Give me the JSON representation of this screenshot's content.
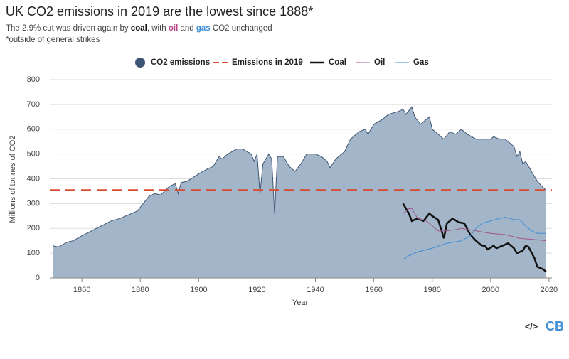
{
  "chart_data": {
    "type": "area",
    "title": "UK CO2 emissions in 2019 are the lowest since 1888*",
    "subtitle": [
      "The 2.9% cut was driven again by ",
      "coal",
      ", with ",
      "oil",
      " and ",
      "gas",
      " CO2 unchanged"
    ],
    "note": "*outside of general strikes",
    "y_label": "Millions of tonnes of CO2",
    "x_label": "Year",
    "logos": [
      "</>",
      "CB"
    ],
    "xlim": [
      1849,
      2021
    ],
    "xticks": [
      1860,
      1880,
      1900,
      1920,
      1940,
      1960,
      1980,
      2000,
      2020
    ],
    "ylim": [
      0,
      800
    ],
    "yticks": [
      0,
      100,
      200,
      300,
      400,
      500,
      600,
      700,
      800
    ],
    "grid": true,
    "legend": "top",
    "series": [
      {
        "name": "CO2 emissions",
        "type": "area",
        "color": "#a3b5c8",
        "stroke": "#3d5575",
        "x": [
          1850,
          1852,
          1855,
          1857,
          1860,
          1865,
          1870,
          1873,
          1875,
          1879,
          1880,
          1883,
          1885,
          1887,
          1890,
          1892,
          1893,
          1894,
          1896,
          1900,
          1903,
          1905,
          1907,
          1908,
          1910,
          1913,
          1915,
          1918,
          1919,
          1920,
          1921,
          1922,
          1924,
          1925,
          1926,
          1927,
          1929,
          1931,
          1933,
          1935,
          1937,
          1940,
          1942,
          1944,
          1945,
          1947,
          1950,
          1952,
          1955,
          1957,
          1958,
          1960,
          1963,
          1965,
          1968,
          1970,
          1971,
          1973,
          1974,
          1976,
          1979,
          1980,
          1982,
          1984,
          1986,
          1988,
          1990,
          1992,
          1995,
          1998,
          2000,
          2001,
          2003,
          2005,
          2008,
          2009,
          2010,
          2011,
          2012,
          2014,
          2016,
          2018,
          2019
        ],
        "values": [
          130,
          125,
          145,
          150,
          170,
          200,
          230,
          240,
          250,
          270,
          285,
          330,
          340,
          335,
          370,
          380,
          340,
          385,
          390,
          420,
          440,
          450,
          490,
          480,
          500,
          520,
          520,
          500,
          470,
          500,
          340,
          460,
          500,
          480,
          260,
          490,
          490,
          450,
          430,
          460,
          500,
          500,
          490,
          470,
          445,
          480,
          510,
          560,
          590,
          600,
          580,
          620,
          640,
          660,
          670,
          680,
          660,
          690,
          650,
          620,
          650,
          600,
          580,
          560,
          590,
          580,
          600,
          580,
          560,
          560,
          560,
          570,
          560,
          560,
          530,
          490,
          510,
          460,
          470,
          430,
          390,
          365,
          355
        ]
      },
      {
        "name": "Emissions in 2019",
        "type": "hline",
        "color": "#d94a30",
        "dashed": true,
        "values": [
          355
        ]
      },
      {
        "name": "Coal",
        "type": "line",
        "color": "#111111",
        "width": 2.5,
        "x": [
          1970,
          1972,
          1973,
          1975,
          1977,
          1979,
          1980,
          1982,
          1984,
          1985,
          1987,
          1989,
          1991,
          1993,
          1995,
          1997,
          1998,
          1999,
          2001,
          2002,
          2004,
          2006,
          2008,
          2009,
          2011,
          2012,
          2013,
          2015,
          2016,
          2018,
          2019
        ],
        "values": [
          300,
          260,
          230,
          240,
          230,
          260,
          250,
          235,
          160,
          220,
          240,
          225,
          220,
          175,
          150,
          130,
          130,
          115,
          130,
          120,
          130,
          140,
          120,
          100,
          110,
          130,
          125,
          80,
          45,
          35,
          25
        ]
      },
      {
        "name": "Oil",
        "type": "line",
        "color": "#a2578b",
        "width": 1,
        "x": [
          1970,
          1972,
          1973,
          1975,
          1978,
          1980,
          1982,
          1985,
          1988,
          1990,
          1995,
          2000,
          2005,
          2010,
          2015,
          2019
        ],
        "values": [
          260,
          280,
          280,
          240,
          230,
          210,
          190,
          190,
          195,
          200,
          190,
          180,
          175,
          160,
          155,
          150
        ]
      },
      {
        "name": "Gas",
        "type": "line",
        "color": "#3f8fd6",
        "width": 1,
        "x": [
          1970,
          1972,
          1975,
          1980,
          1985,
          1990,
          1993,
          1995,
          1997,
          2000,
          2003,
          2005,
          2008,
          2010,
          2012,
          2014,
          2016,
          2019
        ],
        "values": [
          75,
          90,
          105,
          120,
          140,
          150,
          170,
          200,
          220,
          230,
          240,
          245,
          235,
          235,
          210,
          190,
          180,
          180
        ]
      }
    ]
  }
}
